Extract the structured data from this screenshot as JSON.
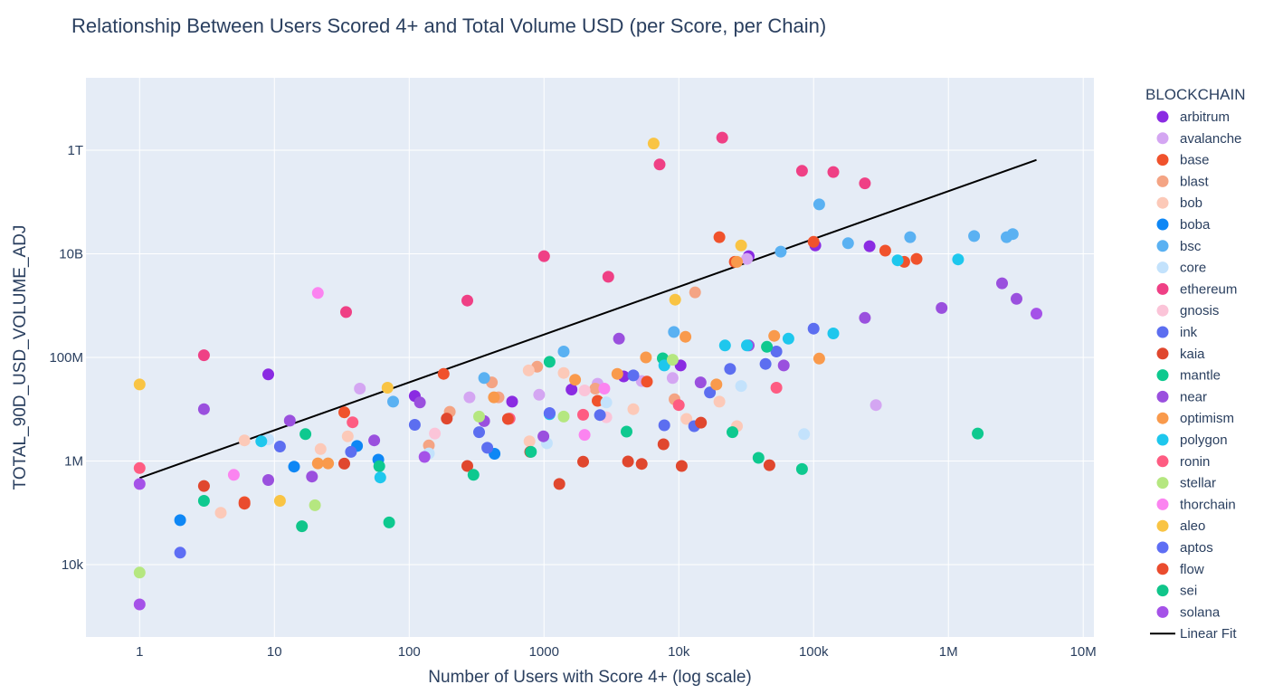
{
  "chart_data": {
    "type": "scatter",
    "title": "Relationship Between Users Scored 4+ and Total Volume USD (per Score, per Chain)",
    "xlabel": "Number of Users with Score 4+ (log scale)",
    "ylabel": "TOTAL_90D_USD_VOLUME_ADJ",
    "x_scale": "log",
    "y_scale": "log",
    "xlim": [
      0.4,
      12000000
    ],
    "ylim": [
      400,
      25000000000000
    ],
    "x_ticks": [
      {
        "value": 1,
        "label": "1"
      },
      {
        "value": 10,
        "label": "10"
      },
      {
        "value": 100,
        "label": "100"
      },
      {
        "value": 1000,
        "label": "1000"
      },
      {
        "value": 10000,
        "label": "10k"
      },
      {
        "value": 100000,
        "label": "100k"
      },
      {
        "value": 1000000,
        "label": "1M"
      },
      {
        "value": 10000000,
        "label": "10M"
      }
    ],
    "y_ticks": [
      {
        "value": 10000,
        "label": "10k"
      },
      {
        "value": 1000000,
        "label": "1M"
      },
      {
        "value": 100000000,
        "label": "100M"
      },
      {
        "value": 10000000000,
        "label": "10B"
      },
      {
        "value": 1000000000000,
        "label": "1T"
      }
    ],
    "legend_title": "BLOCKCHAIN",
    "legend_position": "right",
    "series": [
      {
        "name": "arbitrum",
        "color": "#8a2be2",
        "points": [
          [
            9,
            47000000
          ],
          [
            110,
            18000000
          ],
          [
            580,
            14000000
          ],
          [
            1600,
            24000000
          ],
          [
            3900,
            43000000
          ],
          [
            10300,
            70000000
          ],
          [
            103000,
            14500000000
          ],
          [
            260000,
            14000000000
          ],
          [
            33000,
            9000000000
          ]
        ]
      },
      {
        "name": "avalanche",
        "color": "#d4a6f2",
        "points": [
          [
            43,
            25000000
          ],
          [
            280,
            17000000
          ],
          [
            920,
            19000000
          ],
          [
            2500,
            31000000
          ],
          [
            5300,
            35000000
          ],
          [
            9000,
            40000000
          ],
          [
            32000,
            8000000000
          ],
          [
            290000,
            12000000
          ]
        ]
      },
      {
        "name": "base",
        "color": "#f0522c",
        "points": [
          [
            6,
            160000
          ],
          [
            33,
            8700000
          ],
          [
            180,
            48000000
          ],
          [
            2500,
            14500000
          ],
          [
            5800,
            34000000
          ],
          [
            26000,
            7000000000
          ],
          [
            100000,
            17000000000
          ],
          [
            340000,
            11500000000
          ],
          [
            470000,
            7000000000
          ],
          [
            580000,
            8000000000
          ],
          [
            20000,
            21000000000
          ]
        ]
      },
      {
        "name": "blast",
        "color": "#f4a484",
        "points": [
          [
            140,
            2000000
          ],
          [
            200,
            8900000
          ],
          [
            410,
            33000000
          ],
          [
            460,
            17000000
          ],
          [
            890,
            66000000
          ],
          [
            2400,
            25000000
          ],
          [
            9300,
            15500000
          ],
          [
            13200,
            1800000000
          ]
        ]
      },
      {
        "name": "bob",
        "color": "#fcc9b8",
        "points": [
          [
            4,
            100000
          ],
          [
            6,
            2500000
          ],
          [
            22,
            1700000
          ],
          [
            35,
            3000000
          ],
          [
            770,
            56000000
          ],
          [
            780,
            2400000
          ],
          [
            1400,
            50000000
          ],
          [
            4600,
            10000000
          ],
          [
            11400,
            6500000
          ],
          [
            27000,
            4700000
          ],
          [
            20000,
            14000000
          ]
        ]
      },
      {
        "name": "boba",
        "color": "#0e87f5",
        "points": [
          [
            2,
            72000
          ],
          [
            14,
            780000
          ],
          [
            41,
            1950000
          ],
          [
            59,
            1060000
          ],
          [
            430,
            1380000
          ]
        ]
      },
      {
        "name": "bsc",
        "color": "#5ab1f2",
        "points": [
          [
            76,
            14000000
          ],
          [
            360,
            40000000
          ],
          [
            1400,
            130000000
          ],
          [
            9200,
            310000000
          ],
          [
            57000,
            11000000000
          ],
          [
            180000,
            16000000000
          ],
          [
            520000,
            21000000000
          ],
          [
            1550000,
            22000000000
          ],
          [
            2700000,
            21000000000
          ],
          [
            3000000,
            24000000000
          ],
          [
            110000,
            90000000000
          ]
        ]
      },
      {
        "name": "core",
        "color": "#c3e2fc",
        "points": [
          [
            9,
            2600000
          ],
          [
            140,
            1400000
          ],
          [
            1050,
            2200000
          ],
          [
            2900,
            13500000
          ],
          [
            29000,
            28000000
          ],
          [
            85000,
            3300000
          ]
        ]
      },
      {
        "name": "ethereum",
        "color": "#ef4085",
        "points": [
          [
            3,
            110000000
          ],
          [
            34,
            750000000
          ],
          [
            270,
            1250000000
          ],
          [
            1000,
            9000000000
          ],
          [
            3000,
            3600000000
          ],
          [
            7200,
            530000000000
          ],
          [
            21000,
            1750000000000
          ],
          [
            82000,
            400000000000
          ],
          [
            140000,
            380000000000
          ],
          [
            240000,
            230000000000
          ]
        ]
      },
      {
        "name": "gnosis",
        "color": "#fbc4d8",
        "points": [
          [
            155,
            3400000
          ],
          [
            2000,
            23000000
          ],
          [
            2900,
            7000000
          ]
        ]
      },
      {
        "name": "ink",
        "color": "#5c6ef0",
        "points": [
          [
            11,
            1900000
          ],
          [
            37,
            1500000
          ],
          [
            110,
            5000000
          ],
          [
            330,
            3600000
          ],
          [
            380,
            1800000
          ],
          [
            1100,
            8400000
          ],
          [
            2600,
            7700000
          ],
          [
            4600,
            45000000
          ],
          [
            7800,
            4900000
          ],
          [
            13000,
            4700000
          ],
          [
            17000,
            21000000
          ],
          [
            24000,
            60000000
          ],
          [
            44000,
            75000000
          ],
          [
            53000,
            130000000
          ],
          [
            100000,
            360000000
          ]
        ]
      },
      {
        "name": "kaia",
        "color": "#e0472e",
        "points": [
          [
            3,
            330000
          ],
          [
            33,
            890000
          ],
          [
            270,
            800000
          ],
          [
            790,
            1500000
          ],
          [
            1300,
            360000
          ],
          [
            1950,
            970000
          ],
          [
            4200,
            980000
          ],
          [
            5300,
            880000
          ],
          [
            7700,
            2100000
          ],
          [
            10500,
            800000
          ],
          [
            14600,
            5500000
          ],
          [
            47000,
            830000
          ],
          [
            190,
            6600000
          ]
        ]
      },
      {
        "name": "mantle",
        "color": "#0ec98f",
        "points": [
          [
            3,
            170000
          ],
          [
            17,
            3300000
          ],
          [
            60,
            790000
          ],
          [
            71,
            65000
          ],
          [
            300,
            540000
          ],
          [
            1100,
            82000000
          ],
          [
            4100,
            3700000
          ],
          [
            7600,
            96000000
          ],
          [
            25000,
            3600000
          ],
          [
            39000,
            1150000
          ],
          [
            45000,
            160000000
          ],
          [
            82000,
            700000
          ],
          [
            1650000,
            3400000
          ],
          [
            800,
            1500000
          ]
        ]
      },
      {
        "name": "near",
        "color": "#9a50de",
        "points": [
          [
            3,
            10000000
          ],
          [
            9,
            430000
          ],
          [
            13,
            6000000
          ],
          [
            19,
            500000
          ],
          [
            55,
            2500000
          ],
          [
            120,
            13500000
          ],
          [
            360,
            5900000
          ],
          [
            990,
            3000000
          ],
          [
            3600,
            230000000
          ],
          [
            14500,
            33000000
          ],
          [
            33000,
            170000000
          ],
          [
            60000,
            70000000
          ],
          [
            240000,
            580000000
          ],
          [
            890000,
            900000000
          ],
          [
            2500000,
            2700000000
          ],
          [
            3200000,
            1350000000
          ]
        ]
      },
      {
        "name": "optimism",
        "color": "#f99a4c",
        "points": [
          [
            21,
            900000
          ],
          [
            25,
            900000
          ],
          [
            425,
            17000000
          ],
          [
            1700,
            37000000
          ],
          [
            3500,
            48000000
          ],
          [
            5700,
            100000000
          ],
          [
            11200,
            250000000
          ],
          [
            19000,
            30000000
          ],
          [
            51000,
            260000000
          ],
          [
            110000,
            95000000
          ],
          [
            27000,
            7000000000
          ]
        ]
      },
      {
        "name": "polygon",
        "color": "#1ec7ed",
        "points": [
          [
            8,
            2400000
          ],
          [
            61,
            480000
          ],
          [
            1100,
            8000000
          ],
          [
            7800,
            70000000
          ],
          [
            22000,
            170000000
          ],
          [
            32000,
            170000000
          ],
          [
            65000,
            230000000
          ],
          [
            140000,
            290000000
          ],
          [
            420000,
            7500000000
          ],
          [
            1180000,
            7800000000
          ]
        ]
      },
      {
        "name": "ronin",
        "color": "#fe5c82",
        "points": [
          [
            1,
            730000
          ],
          [
            38,
            5600000
          ],
          [
            555,
            6600000
          ],
          [
            1950,
            7800000
          ],
          [
            10000,
            12000000
          ],
          [
            53000,
            26000000
          ]
        ]
      },
      {
        "name": "stellar",
        "color": "#b5e780",
        "points": [
          [
            1,
            7000
          ],
          [
            20,
            140000
          ],
          [
            330,
            7200000
          ],
          [
            1400,
            7200000
          ],
          [
            9000,
            90000000
          ]
        ]
      },
      {
        "name": "thorchain",
        "color": "#fb84f0",
        "points": [
          [
            5,
            540000
          ],
          [
            21,
            1750000000
          ],
          [
            2000,
            3200000
          ],
          [
            2800,
            25000000
          ]
        ]
      },
      {
        "name": "aleo",
        "color": "#f9c444",
        "points": [
          [
            1,
            30000000
          ],
          [
            11,
            170000
          ],
          [
            69,
            26000000
          ],
          [
            6500,
            1350000000000
          ],
          [
            9400,
            1300000000
          ],
          [
            29000,
            14500000000
          ]
        ]
      },
      {
        "name": "aptos",
        "color": "#5e6ef4",
        "points": [
          [
            2,
            17000
          ],
          [
            1100,
            8400000
          ]
        ]
      },
      {
        "name": "flow",
        "color": "#ea4c2e",
        "points": [
          [
            6,
            150000
          ],
          [
            540,
            6500000
          ]
        ]
      },
      {
        "name": "sei",
        "color": "#10c58a",
        "points": [
          [
            16,
            55000
          ]
        ]
      },
      {
        "name": "solana",
        "color": "#a552e8",
        "points": [
          [
            1,
            1700
          ],
          [
            1,
            360000
          ],
          [
            130,
            1200000
          ],
          [
            4500000,
            700000000
          ]
        ]
      }
    ],
    "linear_fit": {
      "name": "Linear Fit",
      "color": "#000000",
      "points": [
        [
          1,
          470000
        ],
        [
          4500000,
          650000000000
        ]
      ]
    }
  }
}
